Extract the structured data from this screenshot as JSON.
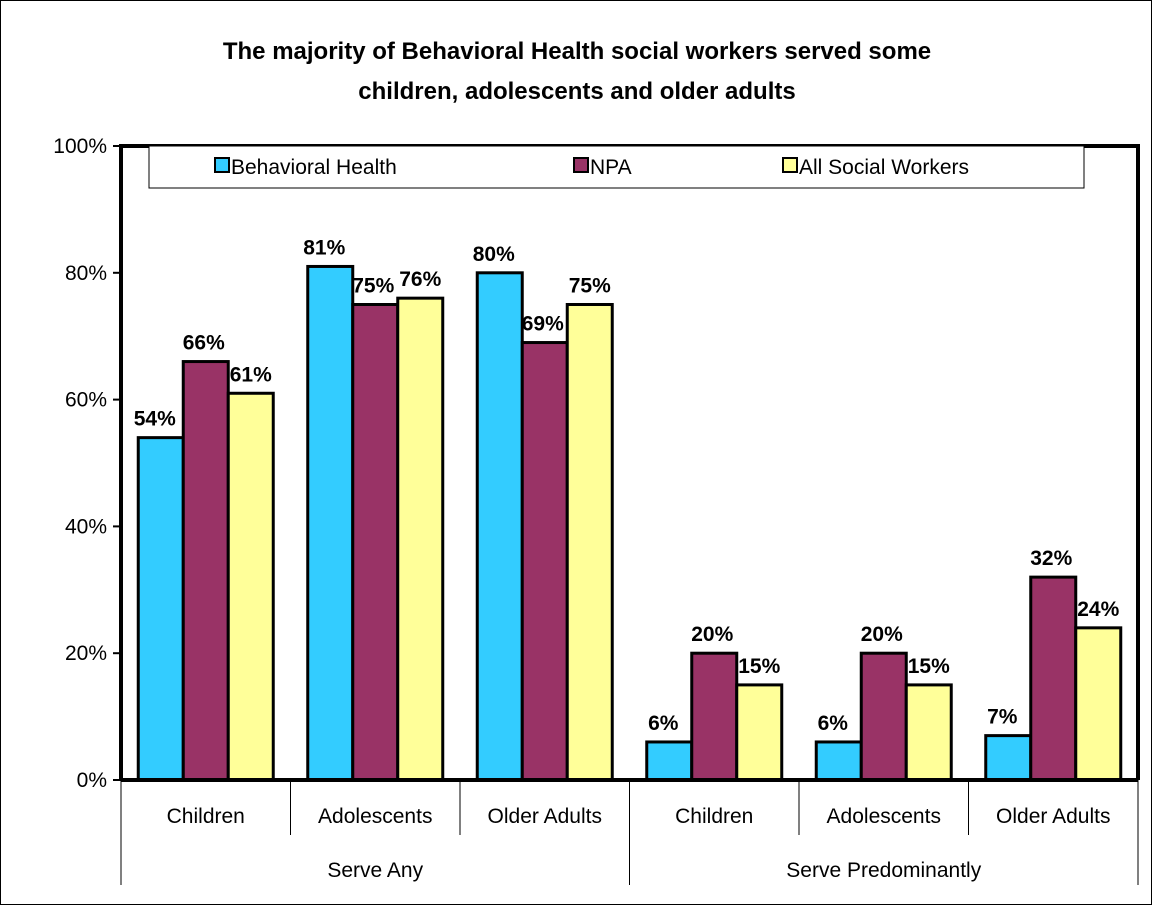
{
  "chart_data": {
    "type": "bar",
    "title_lines": [
      "The majority of Behavioral Health social workers served some",
      "children, adolescents and older adults"
    ],
    "groups": [
      {
        "label": "Serve Any",
        "categories": [
          "Children",
          "Adolescents",
          "Older Adults"
        ]
      },
      {
        "label": "Serve Predominantly",
        "categories": [
          "Children",
          "Adolescents",
          "Older Adults"
        ]
      }
    ],
    "categories": [
      "Children",
      "Adolescents",
      "Older Adults",
      "Children",
      "Adolescents",
      "Older Adults"
    ],
    "series": [
      {
        "name": "Behavioral Health",
        "color": "#33CCFF",
        "values": [
          54,
          81,
          80,
          6,
          6,
          7
        ],
        "labels": [
          "54%",
          "81%",
          "80%",
          "6%",
          "6%",
          "7%"
        ]
      },
      {
        "name": "NPA",
        "color": "#993366",
        "values": [
          66,
          75,
          69,
          20,
          20,
          32
        ],
        "labels": [
          "66%",
          "75%",
          "69%",
          "20%",
          "20%",
          "32%"
        ]
      },
      {
        "name": "All Social Workers",
        "color": "#FFFF99",
        "values": [
          61,
          76,
          75,
          15,
          15,
          24
        ],
        "labels": [
          "61%",
          "76%",
          "75%",
          "15%",
          "15%",
          "24%"
        ]
      }
    ],
    "ylim": [
      0,
      100
    ],
    "yticks": [
      0,
      20,
      40,
      60,
      80,
      100
    ],
    "ytick_labels": [
      "0%",
      "20%",
      "40%",
      "60%",
      "80%",
      "100%"
    ],
    "grid": false,
    "legend_position": "top"
  }
}
